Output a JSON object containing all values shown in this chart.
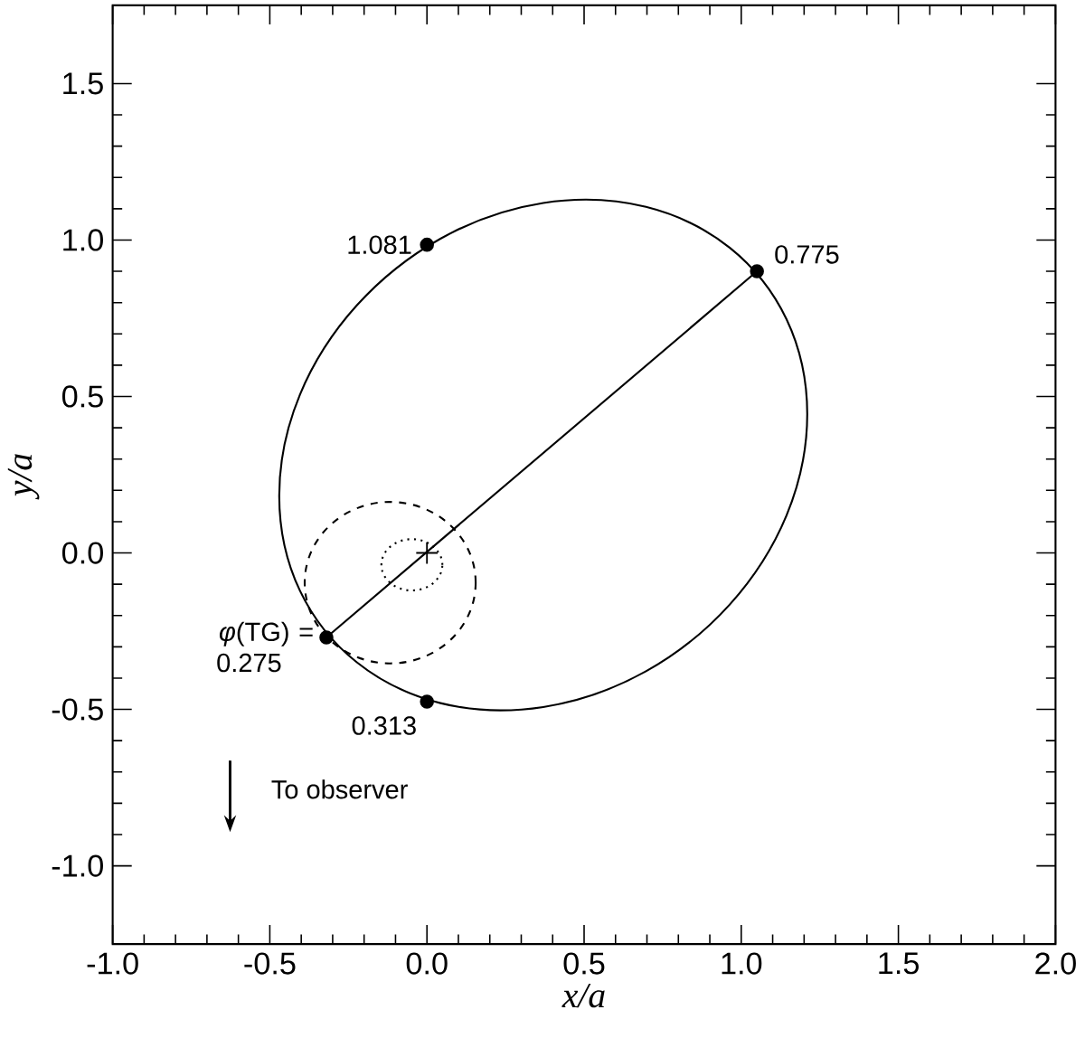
{
  "chart_data": {
    "type": "line",
    "xlabel": "x/a",
    "ylabel": "y/a",
    "xlim": [
      -1.0,
      2.0
    ],
    "ylim": [
      -1.25,
      1.75
    ],
    "xticks": [
      {
        "value": -1.0,
        "label": "-1.0"
      },
      {
        "value": -0.5,
        "label": "-0.5"
      },
      {
        "value": 0.0,
        "label": "0.0"
      },
      {
        "value": 0.5,
        "label": "0.5"
      },
      {
        "value": 1.0,
        "label": "1.0"
      },
      {
        "value": 1.5,
        "label": "1.5"
      },
      {
        "value": 2.0,
        "label": "2.0"
      }
    ],
    "yticks": [
      {
        "value": -1.0,
        "label": "-1.0"
      },
      {
        "value": -0.5,
        "label": "-0.5"
      },
      {
        "value": 0.0,
        "label": "0.0"
      },
      {
        "value": 0.5,
        "label": "0.5"
      },
      {
        "value": 1.0,
        "label": "1.0"
      },
      {
        "value": 1.5,
        "label": "1.5"
      }
    ],
    "grid": false,
    "series": [
      {
        "type": "line",
        "line_style": "solid",
        "color": "#000000",
        "x": [
          -0.32,
          1.05
        ],
        "values": [
          -0.27,
          0.9
        ]
      },
      {
        "type": "scatter",
        "marker": "circle",
        "color": "#000000",
        "x": [
          0.0,
          1.05,
          -0.32,
          0.0
        ],
        "values": [
          0.985,
          0.9,
          -0.27,
          -0.475
        ]
      },
      {
        "type": "scatter",
        "marker": "cross",
        "color": "#000000",
        "x": [
          0.0
        ],
        "values": [
          0.0
        ]
      }
    ],
    "annotations": [
      {
        "text": "1.081",
        "x": 0.0,
        "y": 0.985
      },
      {
        "text": "0.775",
        "x": 1.05,
        "y": 0.9
      },
      {
        "text": "*φ*(TG) = 0.275",
        "x": -0.32,
        "y": -0.27
      },
      {
        "text": "0.313",
        "x": 0.0,
        "y": -0.475
      },
      "To observer"
    ]
  }
}
